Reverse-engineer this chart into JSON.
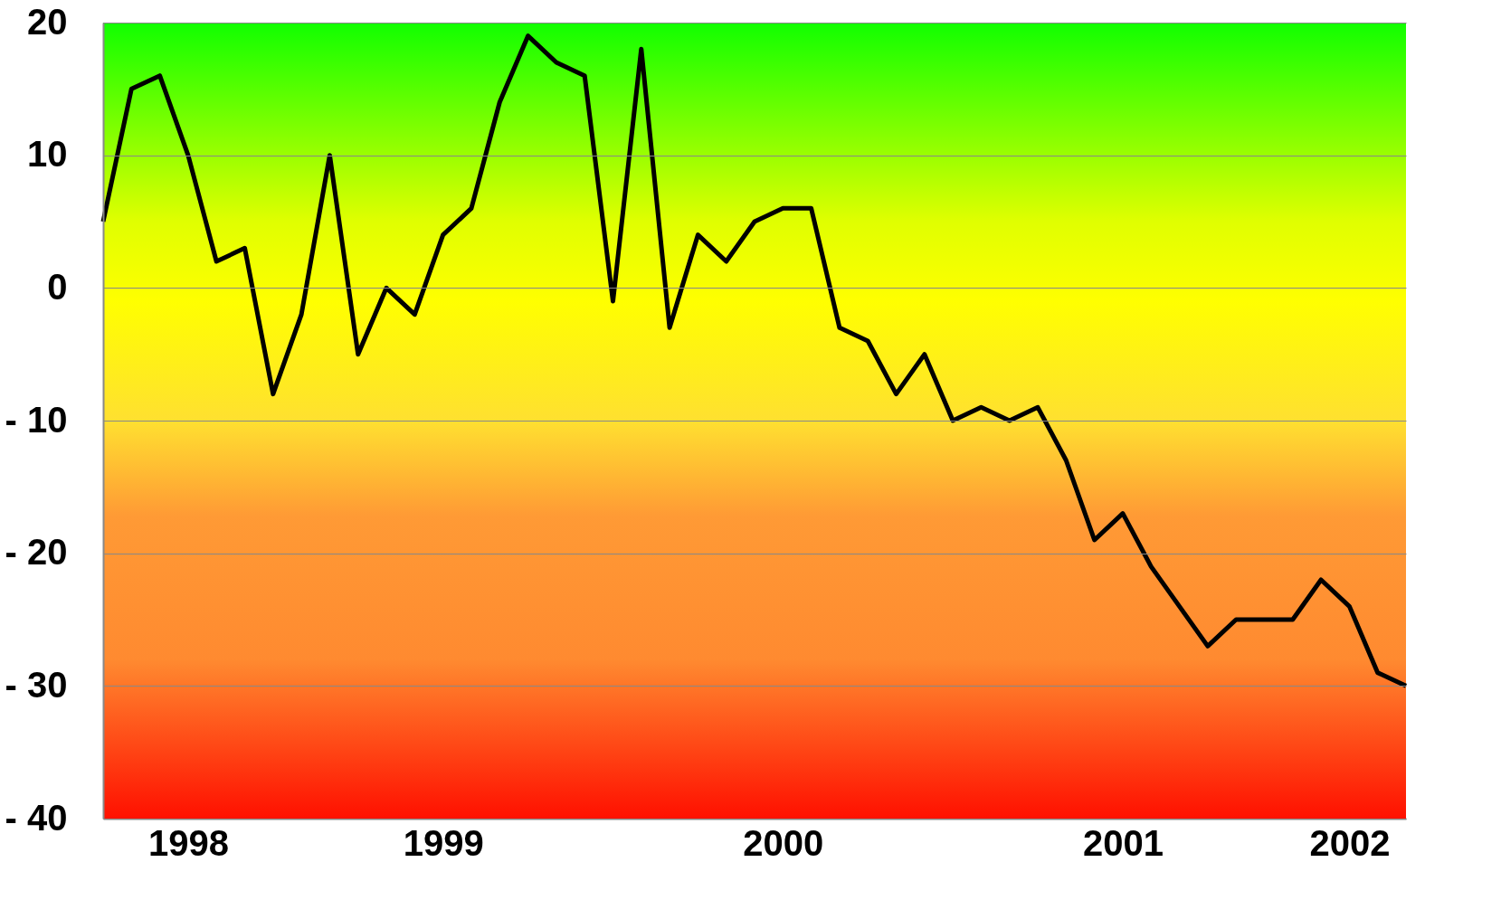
{
  "chart_data": {
    "type": "line",
    "categories": [
      null,
      null,
      null,
      "1998",
      null,
      null,
      null,
      null,
      null,
      null,
      null,
      null,
      "1999",
      null,
      null,
      null,
      null,
      null,
      null,
      null,
      null,
      null,
      null,
      null,
      "2000",
      null,
      null,
      null,
      null,
      null,
      null,
      null,
      null,
      null,
      null,
      null,
      "2001",
      null,
      null,
      null,
      null,
      null,
      null,
      null,
      "2002",
      null,
      null
    ],
    "series": [
      {
        "color": "#000000",
        "values": [
          5,
          15,
          16,
          10,
          2,
          3,
          -8,
          -2,
          10,
          -5,
          0,
          -2,
          4,
          6,
          14,
          19,
          17,
          16,
          -1,
          18,
          -3,
          4,
          2,
          5,
          6,
          6,
          -3,
          -4,
          -8,
          -5,
          -10,
          -9,
          -10,
          -9,
          -13,
          -19,
          -17,
          -21,
          -24,
          -27,
          -25,
          -25,
          -25,
          -22,
          -24,
          -29,
          -30
        ]
      }
    ],
    "ylim": [
      -40,
      20
    ],
    "yticks": [
      20,
      10,
      0,
      {
        "value": -10,
        "label": "- 10"
      },
      {
        "value": -20,
        "label": "- 20"
      },
      {
        "value": -30,
        "label": "- 30"
      },
      {
        "value": -40,
        "label": "- 40"
      }
    ],
    "grid": "y",
    "marker": "none",
    "line_style": "solid"
  }
}
